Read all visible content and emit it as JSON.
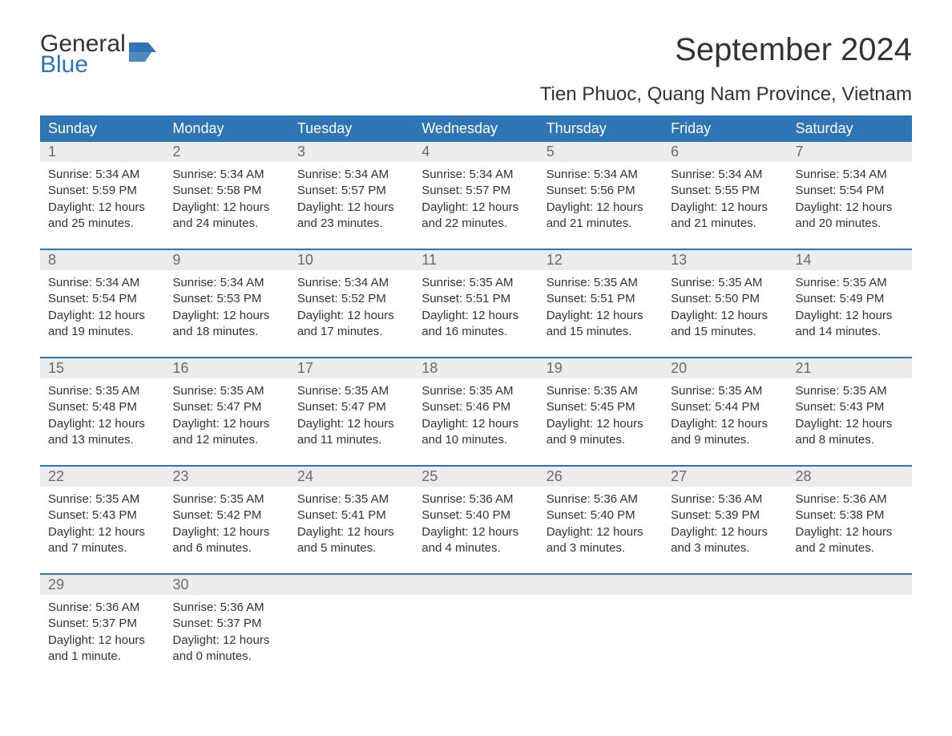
{
  "logo": {
    "top": "General",
    "bottom": "Blue",
    "flag_color": "#2e75b6"
  },
  "title": "September 2024",
  "location": "Tien Phuoc, Quang Nam Province, Vietnam",
  "colors": {
    "header_bg": "#2e75b6",
    "header_text": "#ffffff",
    "daynum_bg": "#ececec",
    "daynum_text": "#6b6b6b",
    "body_text": "#333333",
    "separator": "#2e75b6",
    "page_bg": "#ffffff"
  },
  "typography": {
    "title_fontsize": 40,
    "location_fontsize": 24,
    "dow_fontsize": 18,
    "daynum_fontsize": 18,
    "cell_fontsize": 15
  },
  "days_of_week": [
    "Sunday",
    "Monday",
    "Tuesday",
    "Wednesday",
    "Thursday",
    "Friday",
    "Saturday"
  ],
  "weeks": [
    [
      {
        "num": "1",
        "sunrise": "Sunrise: 5:34 AM",
        "sunset": "Sunset: 5:59 PM",
        "daylight": "Daylight: 12 hours and 25 minutes."
      },
      {
        "num": "2",
        "sunrise": "Sunrise: 5:34 AM",
        "sunset": "Sunset: 5:58 PM",
        "daylight": "Daylight: 12 hours and 24 minutes."
      },
      {
        "num": "3",
        "sunrise": "Sunrise: 5:34 AM",
        "sunset": "Sunset: 5:57 PM",
        "daylight": "Daylight: 12 hours and 23 minutes."
      },
      {
        "num": "4",
        "sunrise": "Sunrise: 5:34 AM",
        "sunset": "Sunset: 5:57 PM",
        "daylight": "Daylight: 12 hours and 22 minutes."
      },
      {
        "num": "5",
        "sunrise": "Sunrise: 5:34 AM",
        "sunset": "Sunset: 5:56 PM",
        "daylight": "Daylight: 12 hours and 21 minutes."
      },
      {
        "num": "6",
        "sunrise": "Sunrise: 5:34 AM",
        "sunset": "Sunset: 5:55 PM",
        "daylight": "Daylight: 12 hours and 21 minutes."
      },
      {
        "num": "7",
        "sunrise": "Sunrise: 5:34 AM",
        "sunset": "Sunset: 5:54 PM",
        "daylight": "Daylight: 12 hours and 20 minutes."
      }
    ],
    [
      {
        "num": "8",
        "sunrise": "Sunrise: 5:34 AM",
        "sunset": "Sunset: 5:54 PM",
        "daylight": "Daylight: 12 hours and 19 minutes."
      },
      {
        "num": "9",
        "sunrise": "Sunrise: 5:34 AM",
        "sunset": "Sunset: 5:53 PM",
        "daylight": "Daylight: 12 hours and 18 minutes."
      },
      {
        "num": "10",
        "sunrise": "Sunrise: 5:34 AM",
        "sunset": "Sunset: 5:52 PM",
        "daylight": "Daylight: 12 hours and 17 minutes."
      },
      {
        "num": "11",
        "sunrise": "Sunrise: 5:35 AM",
        "sunset": "Sunset: 5:51 PM",
        "daylight": "Daylight: 12 hours and 16 minutes."
      },
      {
        "num": "12",
        "sunrise": "Sunrise: 5:35 AM",
        "sunset": "Sunset: 5:51 PM",
        "daylight": "Daylight: 12 hours and 15 minutes."
      },
      {
        "num": "13",
        "sunrise": "Sunrise: 5:35 AM",
        "sunset": "Sunset: 5:50 PM",
        "daylight": "Daylight: 12 hours and 15 minutes."
      },
      {
        "num": "14",
        "sunrise": "Sunrise: 5:35 AM",
        "sunset": "Sunset: 5:49 PM",
        "daylight": "Daylight: 12 hours and 14 minutes."
      }
    ],
    [
      {
        "num": "15",
        "sunrise": "Sunrise: 5:35 AM",
        "sunset": "Sunset: 5:48 PM",
        "daylight": "Daylight: 12 hours and 13 minutes."
      },
      {
        "num": "16",
        "sunrise": "Sunrise: 5:35 AM",
        "sunset": "Sunset: 5:47 PM",
        "daylight": "Daylight: 12 hours and 12 minutes."
      },
      {
        "num": "17",
        "sunrise": "Sunrise: 5:35 AM",
        "sunset": "Sunset: 5:47 PM",
        "daylight": "Daylight: 12 hours and 11 minutes."
      },
      {
        "num": "18",
        "sunrise": "Sunrise: 5:35 AM",
        "sunset": "Sunset: 5:46 PM",
        "daylight": "Daylight: 12 hours and 10 minutes."
      },
      {
        "num": "19",
        "sunrise": "Sunrise: 5:35 AM",
        "sunset": "Sunset: 5:45 PM",
        "daylight": "Daylight: 12 hours and 9 minutes."
      },
      {
        "num": "20",
        "sunrise": "Sunrise: 5:35 AM",
        "sunset": "Sunset: 5:44 PM",
        "daylight": "Daylight: 12 hours and 9 minutes."
      },
      {
        "num": "21",
        "sunrise": "Sunrise: 5:35 AM",
        "sunset": "Sunset: 5:43 PM",
        "daylight": "Daylight: 12 hours and 8 minutes."
      }
    ],
    [
      {
        "num": "22",
        "sunrise": "Sunrise: 5:35 AM",
        "sunset": "Sunset: 5:43 PM",
        "daylight": "Daylight: 12 hours and 7 minutes."
      },
      {
        "num": "23",
        "sunrise": "Sunrise: 5:35 AM",
        "sunset": "Sunset: 5:42 PM",
        "daylight": "Daylight: 12 hours and 6 minutes."
      },
      {
        "num": "24",
        "sunrise": "Sunrise: 5:35 AM",
        "sunset": "Sunset: 5:41 PM",
        "daylight": "Daylight: 12 hours and 5 minutes."
      },
      {
        "num": "25",
        "sunrise": "Sunrise: 5:36 AM",
        "sunset": "Sunset: 5:40 PM",
        "daylight": "Daylight: 12 hours and 4 minutes."
      },
      {
        "num": "26",
        "sunrise": "Sunrise: 5:36 AM",
        "sunset": "Sunset: 5:40 PM",
        "daylight": "Daylight: 12 hours and 3 minutes."
      },
      {
        "num": "27",
        "sunrise": "Sunrise: 5:36 AM",
        "sunset": "Sunset: 5:39 PM",
        "daylight": "Daylight: 12 hours and 3 minutes."
      },
      {
        "num": "28",
        "sunrise": "Sunrise: 5:36 AM",
        "sunset": "Sunset: 5:38 PM",
        "daylight": "Daylight: 12 hours and 2 minutes."
      }
    ],
    [
      {
        "num": "29",
        "sunrise": "Sunrise: 5:36 AM",
        "sunset": "Sunset: 5:37 PM",
        "daylight": "Daylight: 12 hours and 1 minute."
      },
      {
        "num": "30",
        "sunrise": "Sunrise: 5:36 AM",
        "sunset": "Sunset: 5:37 PM",
        "daylight": "Daylight: 12 hours and 0 minutes."
      },
      null,
      null,
      null,
      null,
      null
    ]
  ]
}
